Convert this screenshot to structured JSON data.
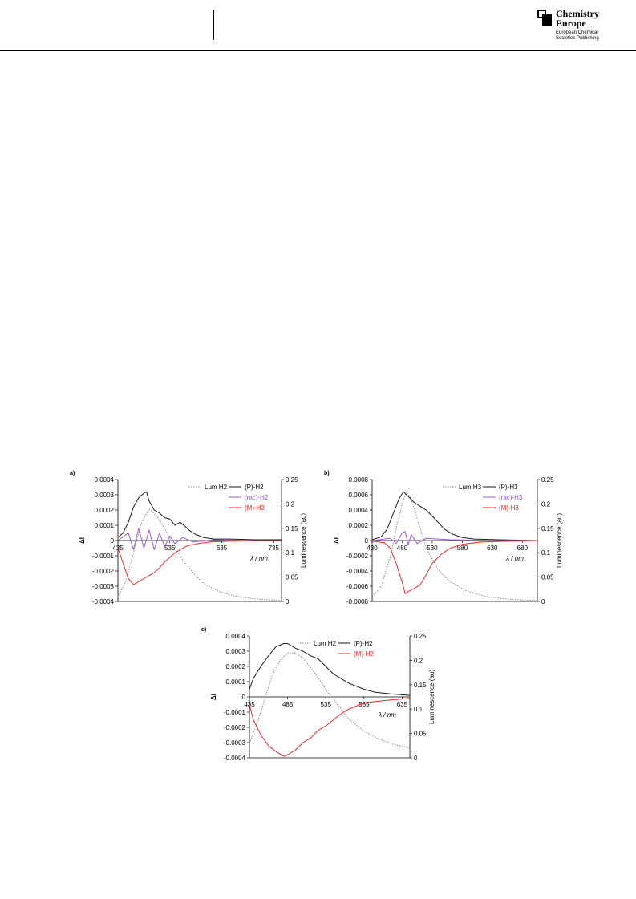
{
  "header": {
    "publisher_line1": "Chemistry",
    "publisher_line2": "Europe",
    "sub_line1": "European Chemical",
    "sub_line2": "Societies Publishing"
  },
  "chart_data": [
    {
      "panel": "a)",
      "type": "line",
      "x_ticks": [
        "435",
        "535",
        "635",
        "735"
      ],
      "x_range": [
        435,
        750
      ],
      "ylabel": "ΔI",
      "y_ticks": [
        "0.0004",
        "0.0003",
        "0.0002",
        "0.0001",
        "0",
        "-0.0001",
        "-0.0002",
        "-0.0003",
        "-0.0004"
      ],
      "y_range": [
        -0.0004,
        0.0004
      ],
      "y2label": "Luminescence (au)",
      "y2_ticks": [
        "0.25",
        "0.2",
        "0.15",
        "0.1",
        "0.05",
        "0"
      ],
      "y2_range": [
        0,
        0.25
      ],
      "xlabel": "λ / nm",
      "series": [
        {
          "name": "Lum H2",
          "color": "#8a8a8a",
          "style": "dotted",
          "axis": "y2",
          "x": [
            435,
            450,
            465,
            480,
            495,
            510,
            525,
            540,
            560,
            580,
            600,
            630,
            660,
            700,
            750
          ],
          "values": [
            0.01,
            0.04,
            0.1,
            0.16,
            0.19,
            0.175,
            0.15,
            0.12,
            0.085,
            0.058,
            0.037,
            0.02,
            0.011,
            0.005,
            0.002
          ]
        },
        {
          "name": "(P)-H2",
          "color": "#1a1a1a",
          "style": "solid",
          "axis": "y",
          "x": [
            435,
            445,
            455,
            465,
            475,
            485,
            490,
            495,
            505,
            515,
            525,
            535,
            545,
            555,
            565,
            575,
            585,
            600,
            620,
            650,
            700,
            750
          ],
          "values": [
            2e-05,
            5e-05,
            0.00012,
            0.00022,
            0.00028,
            0.00031,
            0.00032,
            0.00026,
            0.0002,
            0.00018,
            0.00015,
            0.00014,
            0.0001,
            0.00012,
            9e-05,
            6e-05,
            4e-05,
            2e-05,
            1e-05,
            1e-05,
            5e-06,
            5e-06
          ]
        },
        {
          "name": "(rac)-H2",
          "color": "#9b59d0",
          "style": "solid",
          "axis": "y",
          "x": [
            435,
            455,
            465,
            475,
            485,
            495,
            505,
            515,
            525,
            535,
            545,
            560,
            580,
            620,
            700,
            750
          ],
          "values": [
            0,
            5e-05,
            -6e-05,
            8e-05,
            -5e-05,
            7e-05,
            -6e-05,
            5e-05,
            -4e-05,
            3e-05,
            -2e-05,
            2e-05,
            -1e-05,
            5e-06,
            0,
            0
          ]
        },
        {
          "name": "(M)-H2",
          "color": "#ee2a2a",
          "style": "solid",
          "axis": "y",
          "x": [
            435,
            445,
            455,
            465,
            475,
            485,
            495,
            505,
            515,
            525,
            535,
            545,
            555,
            565,
            575,
            590,
            610,
            640,
            700,
            750
          ],
          "values": [
            -5e-05,
            -0.00015,
            -0.00025,
            -0.00029,
            -0.00027,
            -0.00025,
            -0.00023,
            -0.00021,
            -0.00018,
            -0.00014,
            -0.00011,
            -8e-05,
            -6e-05,
            -4e-05,
            -3e-05,
            -2e-05,
            -1e-05,
            -5e-06,
            0,
            0
          ]
        }
      ]
    },
    {
      "panel": "b)",
      "type": "line",
      "x_ticks": [
        "430",
        "480",
        "530",
        "580",
        "630",
        "680"
      ],
      "x_range": [
        430,
        705
      ],
      "ylabel": "ΔI",
      "y_ticks": [
        "0.0008",
        "0.0006",
        "0.0004",
        "0.0002",
        "0",
        "-0.0002",
        "-0.0004",
        "-0.0006",
        "-0.0008"
      ],
      "y_range": [
        -0.0008,
        0.0008
      ],
      "y2label": "Luminescence (au)",
      "y2_ticks": [
        "0.25",
        "0.2",
        "0.15",
        "0.1",
        "0.05",
        "0"
      ],
      "y2_range": [
        0,
        0.25
      ],
      "xlabel": "λ / nm",
      "series": [
        {
          "name": "Lum H3",
          "color": "#8a8a8a",
          "style": "dotted",
          "axis": "y2",
          "x": [
            430,
            445,
            460,
            470,
            480,
            487,
            495,
            505,
            520,
            540,
            560,
            590,
            620,
            660,
            705
          ],
          "values": [
            0.01,
            0.03,
            0.09,
            0.15,
            0.2,
            0.225,
            0.21,
            0.17,
            0.11,
            0.065,
            0.04,
            0.02,
            0.01,
            0.004,
            0.002
          ]
        },
        {
          "name": "(P)-H3",
          "color": "#1a1a1a",
          "style": "solid",
          "axis": "y",
          "x": [
            430,
            445,
            455,
            465,
            475,
            482,
            490,
            500,
            510,
            520,
            535,
            550,
            565,
            580,
            600,
            640,
            705
          ],
          "values": [
            1e-05,
            5e-05,
            0.00015,
            0.00035,
            0.00055,
            0.00064,
            0.00058,
            0.0005,
            0.00045,
            0.0004,
            0.00028,
            0.00015,
            8e-05,
            4e-05,
            2e-05,
            1e-05,
            0
          ]
        },
        {
          "name": "(rac)-H3",
          "color": "#9b59d0",
          "style": "solid",
          "axis": "y",
          "x": [
            430,
            460,
            470,
            480,
            485,
            490,
            495,
            505,
            520,
            560,
            640,
            705
          ],
          "values": [
            0,
            3e-05,
            -4e-05,
            0.0001,
            0.00012,
            -6e-05,
            8e-05,
            -4e-05,
            3e-05,
            1e-05,
            0,
            0
          ]
        },
        {
          "name": "(M)-H3",
          "color": "#ee2a2a",
          "style": "solid",
          "axis": "y",
          "x": [
            430,
            450,
            460,
            470,
            480,
            485,
            490,
            500,
            510,
            520,
            530,
            545,
            560,
            580,
            610,
            650,
            705
          ],
          "values": [
            -1e-05,
            -3e-05,
            -0.0001,
            -0.0003,
            -0.00055,
            -0.0007,
            -0.00067,
            -0.00063,
            -0.00058,
            -0.00045,
            -0.0003,
            -0.00018,
            -0.0001,
            -5e-05,
            -2e-05,
            -1e-05,
            0
          ]
        }
      ]
    },
    {
      "panel": "c)",
      "type": "line",
      "x_ticks": [
        "435",
        "485",
        "535",
        "585",
        "635"
      ],
      "x_range": [
        435,
        645
      ],
      "ylabel": "ΔI",
      "y_ticks": [
        "0.0004",
        "0.0003",
        "0.0002",
        "0.0001",
        "0",
        "-0.0001",
        "-0.0002",
        "-0.0003",
        "-0.0004"
      ],
      "y_range": [
        -0.0004,
        0.0004
      ],
      "y2label": "Luminescence (au)",
      "y2_ticks": [
        "0.25",
        "0.2",
        "0.15",
        "0.1",
        "0.05",
        "0"
      ],
      "y2_range": [
        0,
        0.25
      ],
      "xlabel": "λ / nm",
      "series": [
        {
          "name": "Lum H2",
          "color": "#8a8a8a",
          "style": "dotted",
          "axis": "y2",
          "x": [
            435,
            445,
            455,
            465,
            475,
            485,
            495,
            505,
            515,
            525,
            535,
            550,
            565,
            585,
            605,
            625,
            645
          ],
          "values": [
            0.03,
            0.07,
            0.12,
            0.17,
            0.2,
            0.215,
            0.215,
            0.205,
            0.185,
            0.165,
            0.14,
            0.11,
            0.08,
            0.055,
            0.038,
            0.027,
            0.02
          ]
        },
        {
          "name": "(P)-H2",
          "color": "#1a1a1a",
          "style": "solid",
          "axis": "y",
          "x": [
            435,
            440,
            450,
            460,
            470,
            480,
            485,
            495,
            505,
            515,
            525,
            535,
            545,
            555,
            565,
            575,
            585,
            600,
            620,
            645
          ],
          "values": [
            5e-05,
            0.00012,
            0.0002,
            0.00027,
            0.00033,
            0.00035,
            0.00035,
            0.00032,
            0.0003,
            0.00027,
            0.00025,
            0.0002,
            0.00015,
            0.00012,
            9e-05,
            7e-05,
            5e-05,
            3e-05,
            2e-05,
            1e-05
          ]
        },
        {
          "name": "(M)-H2",
          "color": "#ee2a2a",
          "style": "solid",
          "axis": "y",
          "x": [
            435,
            440,
            450,
            460,
            470,
            480,
            485,
            495,
            505,
            515,
            525,
            535,
            545,
            555,
            565,
            575,
            585,
            600,
            620,
            645
          ],
          "values": [
            -5e-05,
            -0.00015,
            -0.00025,
            -0.00032,
            -0.00036,
            -0.00039,
            -0.00038,
            -0.00035,
            -0.0003,
            -0.00027,
            -0.00022,
            -0.00019,
            -0.00015,
            -0.00011,
            -8e-05,
            -6e-05,
            -4e-05,
            -3e-05,
            -2e-05,
            -1e-05
          ]
        }
      ]
    }
  ]
}
